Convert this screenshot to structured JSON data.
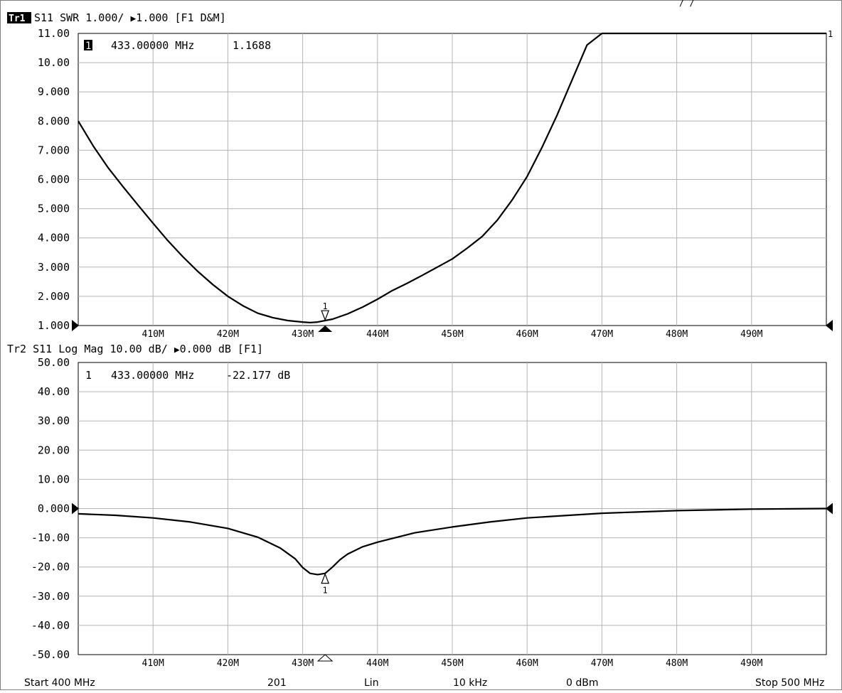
{
  "channel_title_fragment": "/ /",
  "traces": [
    {
      "title_id": "Tr1",
      "title_text": "S11  SWR 1.000/ ",
      "ref_symbol": "▶",
      "ref_value": "1.000",
      "flags": " [F1 D&M]",
      "marker_readout": {
        "index": "1",
        "frequency": "433.00000 MHz",
        "value": "1.1688"
      },
      "marker_label": "1",
      "right_edge_label": "1"
    },
    {
      "title_id": "Tr2",
      "title_text": "S11  Log Mag 10.00 dB/ ",
      "ref_symbol": "▶",
      "ref_value": "0.000 dB",
      "flags": " [F1]",
      "marker_readout": {
        "index": "1",
        "frequency": "433.00000 MHz",
        "value": "-22.177 dB"
      },
      "marker_label": "1"
    }
  ],
  "footer": {
    "start": "Start 400 MHz",
    "points": "201",
    "sweep_type": "Lin",
    "ifbw": "10 kHz",
    "power": "0 dBm",
    "stop": "Stop 500 MHz"
  },
  "colors": {
    "background": "#ffffff",
    "trace": "#000000",
    "grid": "#b4b4b4"
  },
  "chart_data": [
    {
      "type": "line",
      "title": "Tr1 S11 SWR 1.000/ ▶1.000 [F1 D&M]",
      "xlabel": "",
      "ylabel": "",
      "xlim": [
        400,
        500
      ],
      "ylim": [
        1.0,
        11.0
      ],
      "grid": true,
      "x_tick_labels": [
        "410M",
        "420M",
        "430M",
        "440M",
        "450M",
        "460M",
        "470M",
        "480M",
        "490M"
      ],
      "x_tick_values": [
        410,
        420,
        430,
        440,
        450,
        460,
        470,
        480,
        490
      ],
      "y_tick_labels": [
        "11.00",
        "10.00",
        "9.000",
        "8.000",
        "7.000",
        "6.000",
        "5.000",
        "4.000",
        "3.000",
        "2.000",
        "1.000"
      ],
      "y_tick_values": [
        11,
        10,
        9,
        8,
        7,
        6,
        5,
        4,
        3,
        2,
        1
      ],
      "series": [
        {
          "x": [
            400,
            402,
            404,
            406,
            408,
            410,
            412,
            414,
            416,
            418,
            420,
            422,
            424,
            426,
            428,
            430,
            431,
            432,
            433,
            434,
            436,
            438,
            440,
            442,
            444,
            446,
            448,
            450,
            452,
            454,
            456,
            458,
            460,
            462,
            464,
            466,
            468,
            470,
            472,
            473.5,
            480,
            490,
            500
          ],
          "y": [
            8.0,
            7.15,
            6.4,
            5.75,
            5.12,
            4.5,
            3.9,
            3.35,
            2.85,
            2.4,
            2.0,
            1.68,
            1.42,
            1.27,
            1.17,
            1.12,
            1.1,
            1.12,
            1.17,
            1.22,
            1.4,
            1.63,
            1.9,
            2.2,
            2.45,
            2.72,
            3.0,
            3.28,
            3.65,
            4.05,
            4.6,
            5.3,
            6.1,
            7.1,
            8.2,
            9.4,
            10.6,
            11.0,
            11.0,
            11.0,
            11.0,
            11.0,
            11.0
          ]
        }
      ],
      "markers": [
        {
          "label": "1",
          "x": 433,
          "y": 1.1688
        }
      ],
      "reference_level": 1.0
    },
    {
      "type": "line",
      "title": "Tr2 S11 Log Mag 10.00 dB/ ▶0.000 dB [F1]",
      "xlabel": "",
      "ylabel": "",
      "xlim": [
        400,
        500
      ],
      "ylim": [
        -50.0,
        50.0
      ],
      "grid": true,
      "x_tick_labels": [
        "410M",
        "420M",
        "430M",
        "440M",
        "450M",
        "460M",
        "470M",
        "480M",
        "490M"
      ],
      "x_tick_values": [
        410,
        420,
        430,
        440,
        450,
        460,
        470,
        480,
        490
      ],
      "y_tick_labels": [
        "50.00",
        "40.00",
        "30.00",
        "20.00",
        "10.00",
        "0.000",
        "-10.00",
        "-20.00",
        "-30.00",
        "-40.00",
        "-50.00"
      ],
      "y_tick_values": [
        50,
        40,
        30,
        20,
        10,
        0,
        -10,
        -20,
        -30,
        -40,
        -50
      ],
      "series": [
        {
          "x": [
            400,
            405,
            410,
            415,
            420,
            424,
            427,
            429,
            430,
            431,
            432,
            433,
            434,
            435,
            436,
            438,
            440,
            445,
            450,
            455,
            460,
            470,
            480,
            490,
            500
          ],
          "y": [
            -1.8,
            -2.3,
            -3.2,
            -4.6,
            -6.8,
            -9.8,
            -13.5,
            -17.2,
            -20.2,
            -22.2,
            -22.6,
            -22.2,
            -20.0,
            -17.5,
            -15.6,
            -13.1,
            -11.5,
            -8.3,
            -6.3,
            -4.6,
            -3.2,
            -1.6,
            -0.7,
            -0.2,
            0.0
          ]
        }
      ],
      "markers": [
        {
          "label": "1",
          "x": 433,
          "y": -22.177
        }
      ],
      "reference_level": 0.0
    }
  ]
}
